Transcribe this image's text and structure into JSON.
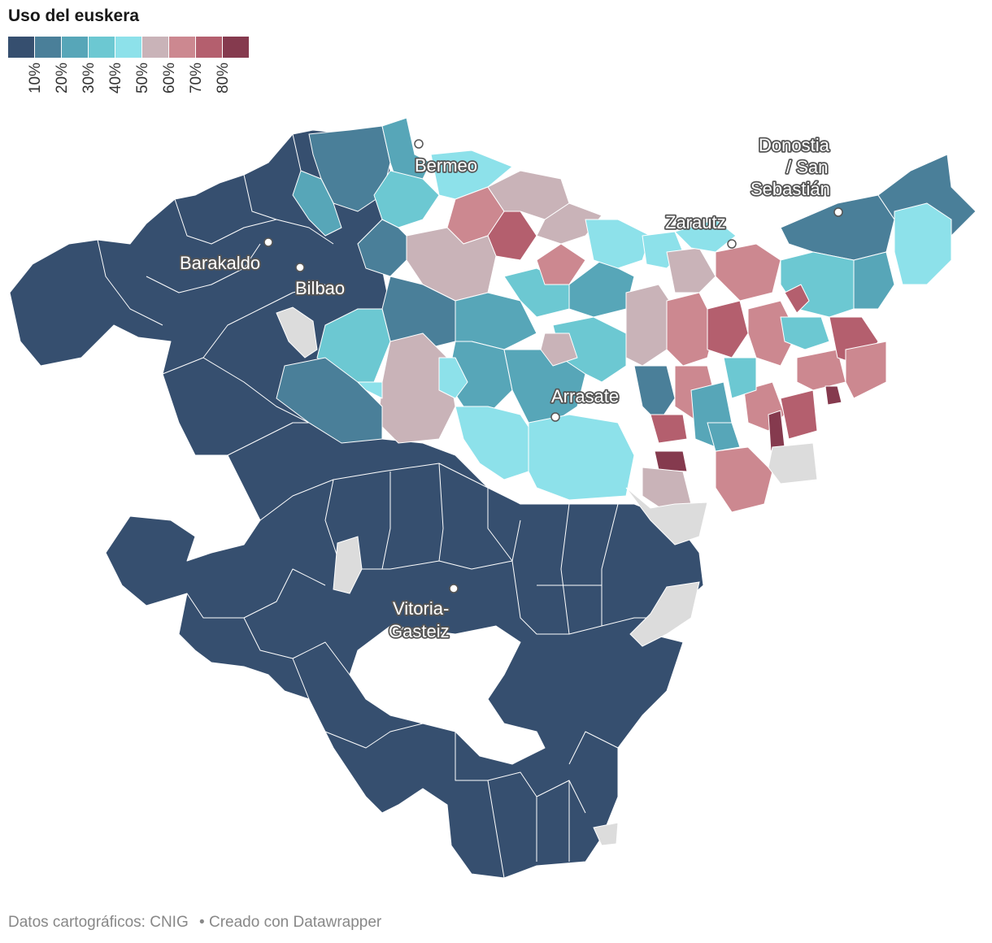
{
  "title": "Uso del euskera",
  "legend": {
    "colors": [
      "#364f6f",
      "#4a7f99",
      "#57a6b8",
      "#6cc8d2",
      "#8de1ea",
      "#c9b3b8",
      "#cc8890",
      "#b45f6e",
      "#853a4e"
    ],
    "ticks": [
      "10%",
      "20%",
      "30%",
      "40%",
      "50%",
      "60%",
      "70%",
      "80%"
    ]
  },
  "cities": [
    {
      "name": "Bermeo"
    },
    {
      "name": "Barakaldo"
    },
    {
      "name": "Bilbao"
    },
    {
      "name": "Zarautz"
    },
    {
      "name_lines": [
        "Donostia",
        "/ San",
        "Sebastián"
      ]
    },
    {
      "name": "Arrasate"
    },
    {
      "name_lines": [
        "Vitoria-",
        "Gasteiz"
      ]
    }
  ],
  "footer": {
    "source": "Datos cartográficos: CNIG",
    "separator": "•",
    "credit": "Creado con Datawrapper"
  },
  "no_data_color": "#dcdcdc"
}
